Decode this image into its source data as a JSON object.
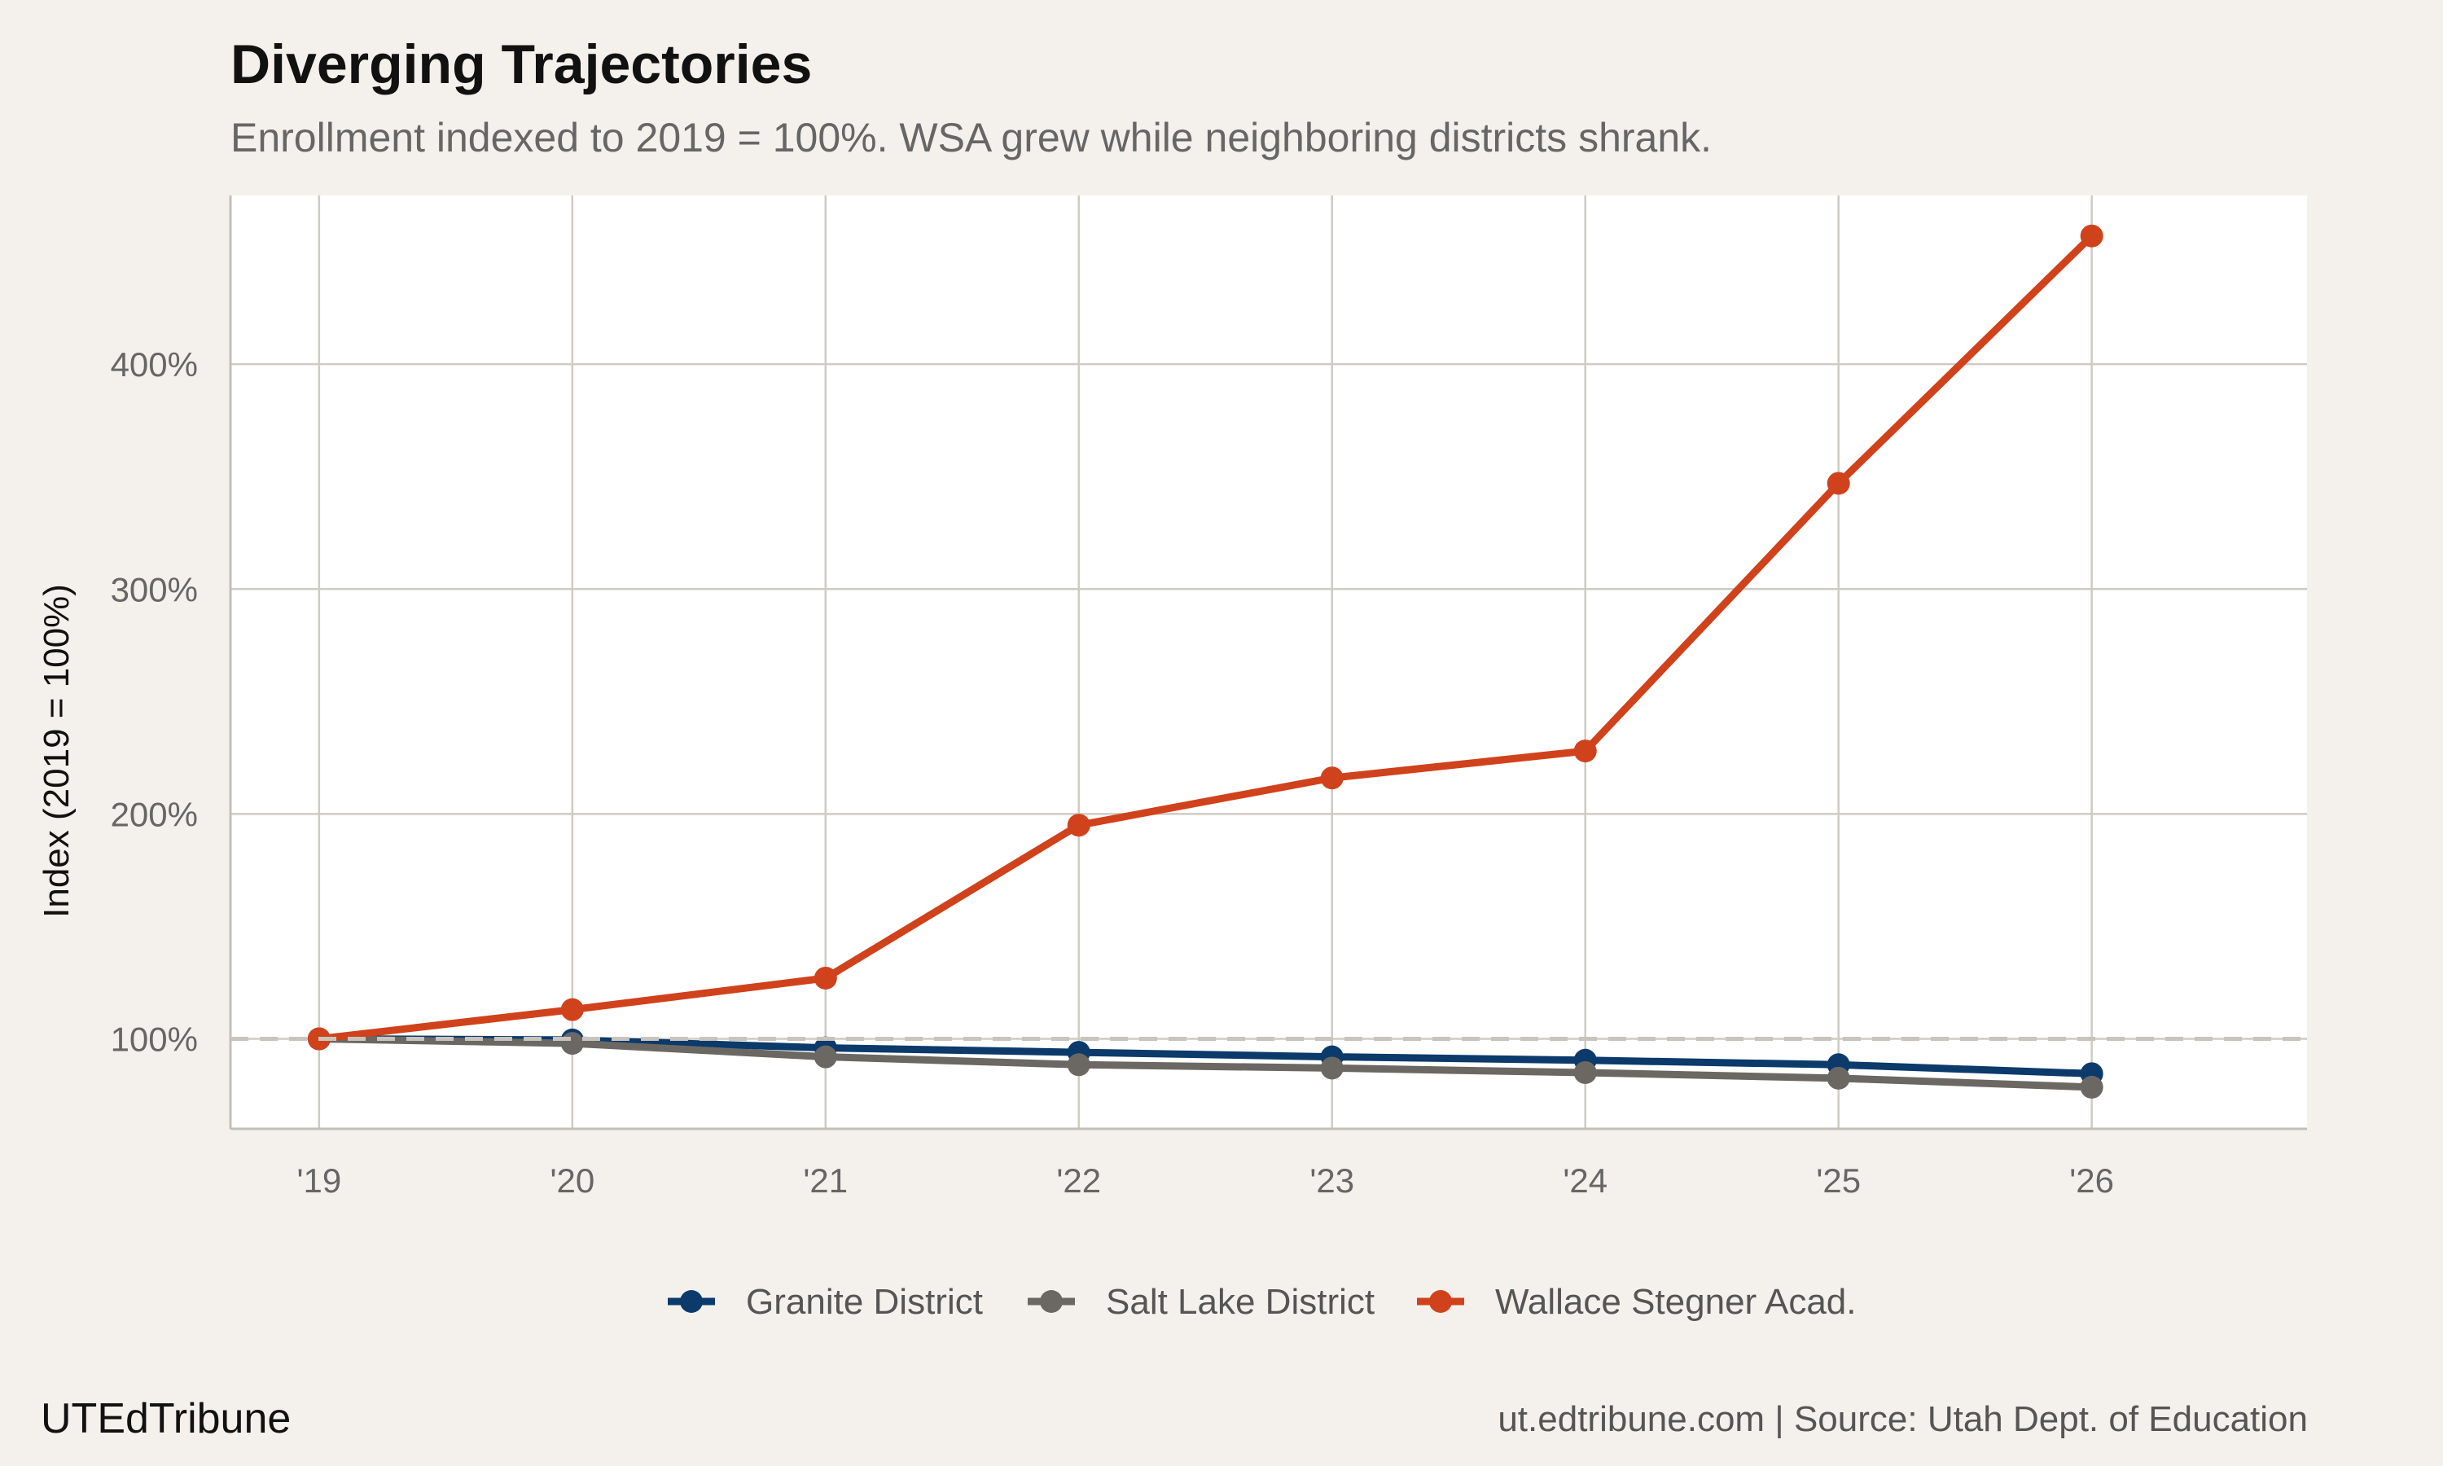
{
  "header": {
    "title": "Diverging Trajectories",
    "subtitle": "Enrollment indexed to 2019 = 100%. WSA grew while neighboring districts shrank."
  },
  "footer": {
    "brand": "UTEdTribune",
    "source": "ut.edtribune.com | Source: Utah Dept. of Education"
  },
  "chart_data": {
    "type": "line",
    "title": "Diverging Trajectories",
    "subtitle": "Enrollment indexed to 2019 = 100%. WSA grew while neighboring districts shrank.",
    "xlabel": "",
    "ylabel": "Index (2019 = 100%)",
    "categories": [
      "'19",
      "'20",
      "'21",
      "'22",
      "'23",
      "'24",
      "'25",
      "'26"
    ],
    "xlim": [
      -0.35,
      7.85
    ],
    "ylim": [
      60,
      475
    ],
    "yticks": [
      100,
      200,
      300,
      400
    ],
    "ytick_labels": [
      "100%",
      "200%",
      "300%",
      "400%"
    ],
    "reference_line": 100,
    "grid": true,
    "legend_position": "bottom",
    "series": [
      {
        "name": "Granite District",
        "color": "#0b3a6b",
        "values": [
          100,
          99.5,
          96,
          94,
          92,
          90.5,
          88.5,
          84.5
        ]
      },
      {
        "name": "Salt Lake District",
        "color": "#6b6863",
        "values": [
          100,
          98,
          92,
          88.5,
          87,
          85,
          82.5,
          78.5
        ]
      },
      {
        "name": "Wallace Stegner Acad.",
        "color": "#d0421b",
        "values": [
          100,
          113,
          127,
          195,
          216,
          228,
          347,
          457
        ]
      }
    ]
  }
}
